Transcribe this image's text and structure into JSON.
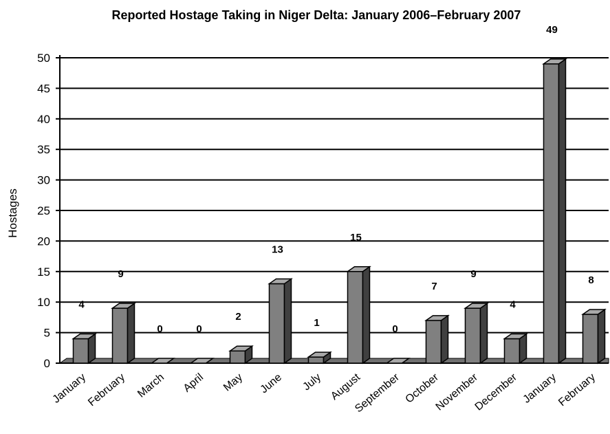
{
  "chart_data": {
    "type": "bar",
    "title": "Reported Hostage Taking in Niger Delta: January 2006–February 2007",
    "xlabel": "",
    "ylabel": "Hostages",
    "ylim": [
      0,
      50
    ],
    "yticks": [
      0,
      5,
      10,
      15,
      20,
      25,
      30,
      35,
      40,
      45,
      50
    ],
    "grid": true,
    "categories": [
      "January",
      "February",
      "March",
      "April",
      "May",
      "June",
      "July",
      "August",
      "September",
      "October",
      "November",
      "December",
      "January",
      "February"
    ],
    "values": [
      4,
      9,
      0,
      0,
      2,
      13,
      1,
      15,
      0,
      7,
      9,
      4,
      49,
      8
    ],
    "colors": {
      "bar_front": "#808080",
      "bar_side": "#404040",
      "bar_top": "#a8a8a8",
      "floor": "#707070"
    }
  }
}
